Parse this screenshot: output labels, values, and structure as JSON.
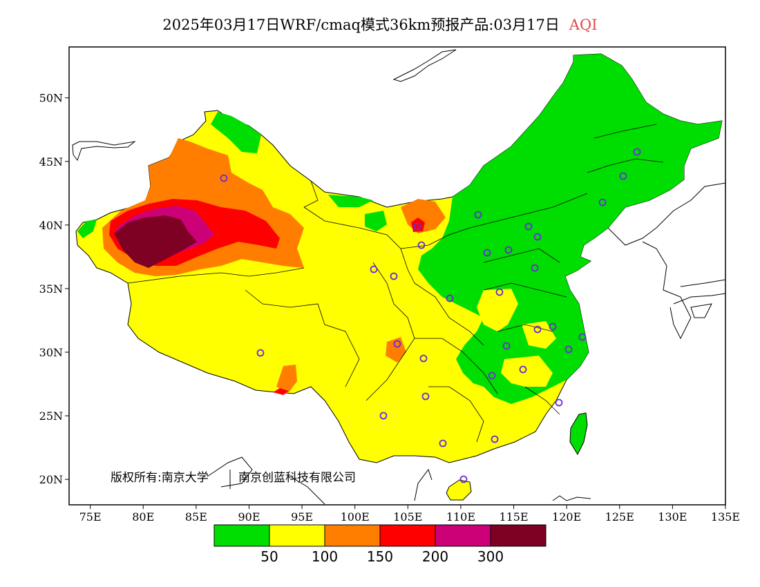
{
  "title": {
    "main": "2025年03月17日WRF/cmaq模式36km预报产品:03月17日",
    "variable": "AQI"
  },
  "copyright": {
    "left": "版权所有:南京大学",
    "right": "南京创蓝科技有限公司"
  },
  "axes": {
    "lon_ticks": [
      "75E",
      "80E",
      "85E",
      "90E",
      "95E",
      "100E",
      "105E",
      "110E",
      "115E",
      "120E",
      "125E",
      "130E",
      "135E"
    ],
    "lat_ticks": [
      "50N",
      "45N",
      "40N",
      "35N",
      "30N",
      "25N",
      "20N"
    ],
    "lon_range": [
      73,
      135
    ],
    "lat_range": [
      18,
      54
    ]
  },
  "legend": {
    "colors": [
      "#00dd00",
      "#ffff00",
      "#ff7e00",
      "#ff0000",
      "#cc0077",
      "#7e0023"
    ],
    "labels": [
      "50",
      "100",
      "150",
      "200",
      "300"
    ]
  },
  "station_color": "#6a2bd9"
}
